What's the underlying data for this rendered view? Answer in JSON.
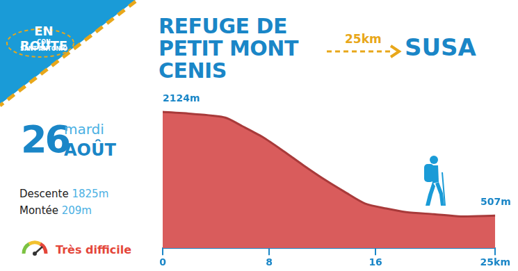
{
  "header": {
    "logo": [
      "EN ROUTE",
      "CON",
      "SANT'ANTONIO"
    ],
    "from": "REFUGE DE PETIT MONT CENIS",
    "distance": "25km",
    "to": "SUSA"
  },
  "date": {
    "day": "26",
    "weekday": "mardi",
    "month": "AOÛT"
  },
  "stats": [
    {
      "label": "Descente",
      "value": "1825m"
    },
    {
      "label": "Montée",
      "value": "209m"
    }
  ],
  "difficulty": "Très difficile",
  "chart_data": {
    "type": "area",
    "color": "#d95c5c",
    "x": [
      0,
      2.4,
      4.7,
      6,
      7.5,
      9.1,
      10.6,
      12.2,
      13.7,
      15.2,
      16.8,
      18.3,
      20.4,
      22.4,
      25
    ],
    "values": [
      2124,
      2090,
      2035,
      1900,
      1734,
      1510,
      1288,
      1065,
      875,
      697,
      619,
      563,
      530,
      496,
      507
    ],
    "xlim": [
      0,
      25
    ],
    "xticks": [
      0,
      8,
      16,
      {
        "value": 25,
        "label": "25km"
      }
    ],
    "ylim": [
      0,
      2200
    ],
    "tick_labels": "x",
    "grid": false,
    "annotations": [
      {
        "text": "2124m",
        "x": 0,
        "y": 2124
      },
      {
        "text": "507m",
        "x": 25,
        "y": 507
      }
    ]
  }
}
